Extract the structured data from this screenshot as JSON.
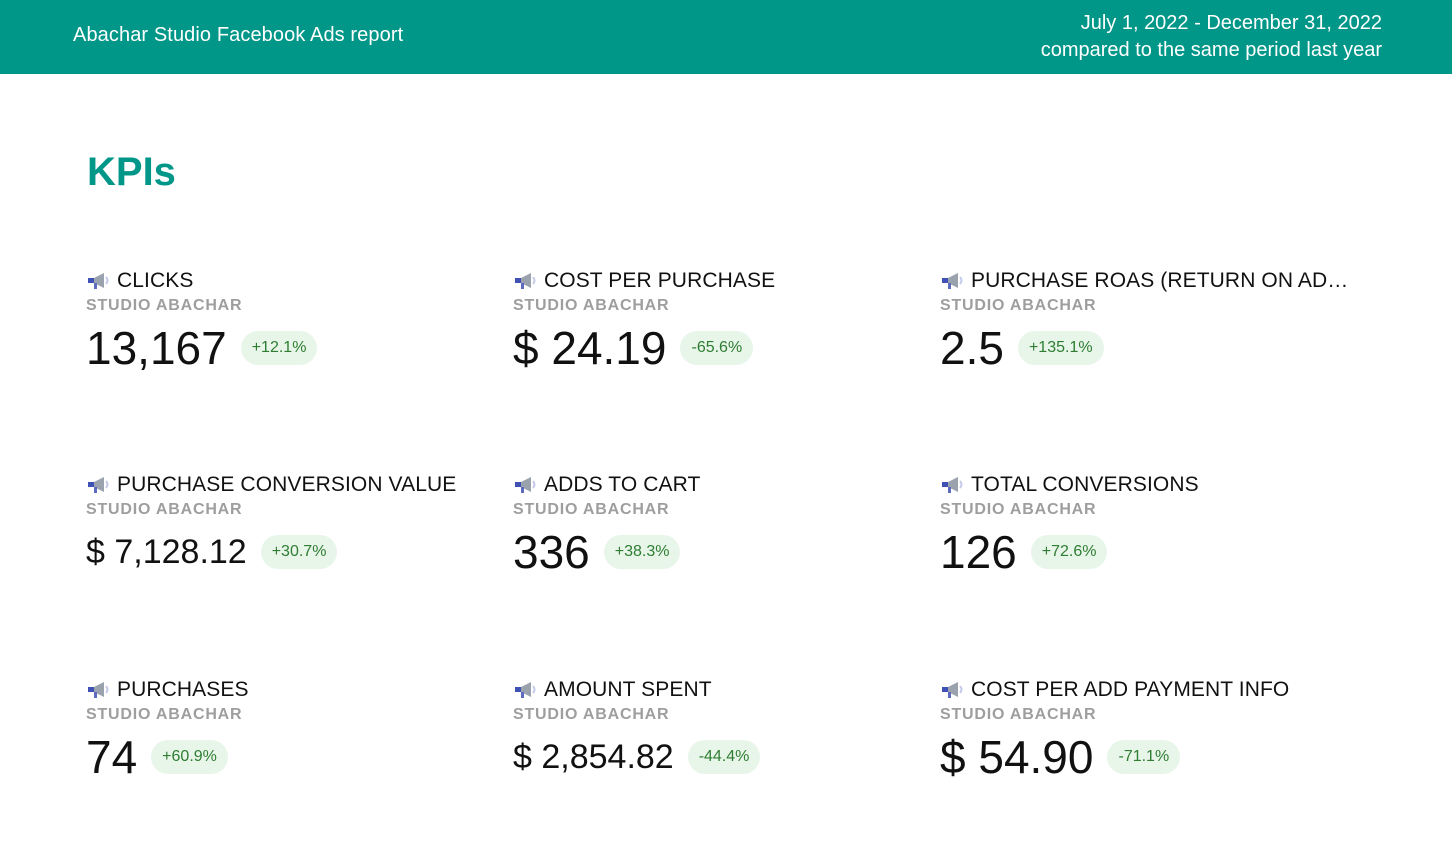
{
  "header": {
    "title": "Abachar Studio Facebook Ads report",
    "period_line1": "July 1, 2022 - December 31, 2022",
    "period_line2": "compared to the same period last year",
    "background_color": "#009688"
  },
  "section": {
    "title": "KPIs"
  },
  "kpis": [
    {
      "label": "CLICKS",
      "source": "STUDIO ABACHAR",
      "value": "13,167",
      "change": "+12.1%",
      "icon": "megaphone-icon"
    },
    {
      "label": "COST PER PURCHASE",
      "source": "STUDIO ABACHAR",
      "value": "$ 24.19",
      "change": "-65.6%",
      "icon": "megaphone-icon"
    },
    {
      "label": "PURCHASE ROAS (RETURN ON AD…",
      "source": "STUDIO ABACHAR",
      "value": "2.5",
      "change": "+135.1%",
      "icon": "megaphone-icon"
    },
    {
      "label": "PURCHASE CONVERSION VALUE",
      "source": "STUDIO ABACHAR",
      "value": "$ 7,128.12",
      "change": "+30.7%",
      "icon": "megaphone-icon"
    },
    {
      "label": "ADDS TO CART",
      "source": "STUDIO ABACHAR",
      "value": "336",
      "change": "+38.3%",
      "icon": "megaphone-icon"
    },
    {
      "label": "TOTAL CONVERSIONS",
      "source": "STUDIO ABACHAR",
      "value": "126",
      "change": "+72.6%",
      "icon": "megaphone-icon"
    },
    {
      "label": "PURCHASES",
      "source": "STUDIO ABACHAR",
      "value": "74",
      "change": "+60.9%",
      "icon": "megaphone-icon"
    },
    {
      "label": "AMOUNT SPENT",
      "source": "STUDIO ABACHAR",
      "value": "$ 2,854.82",
      "change": "-44.4%",
      "icon": "megaphone-icon"
    },
    {
      "label": "COST PER ADD PAYMENT INFO",
      "source": "STUDIO ABACHAR",
      "value": "$ 54.90",
      "change": "-71.1%",
      "icon": "megaphone-icon"
    }
  ],
  "colors": {
    "accent": "#009688",
    "delta_background": "#e8f5e9",
    "delta_text": "#2e7d32",
    "muted": "#9e9e9e"
  }
}
